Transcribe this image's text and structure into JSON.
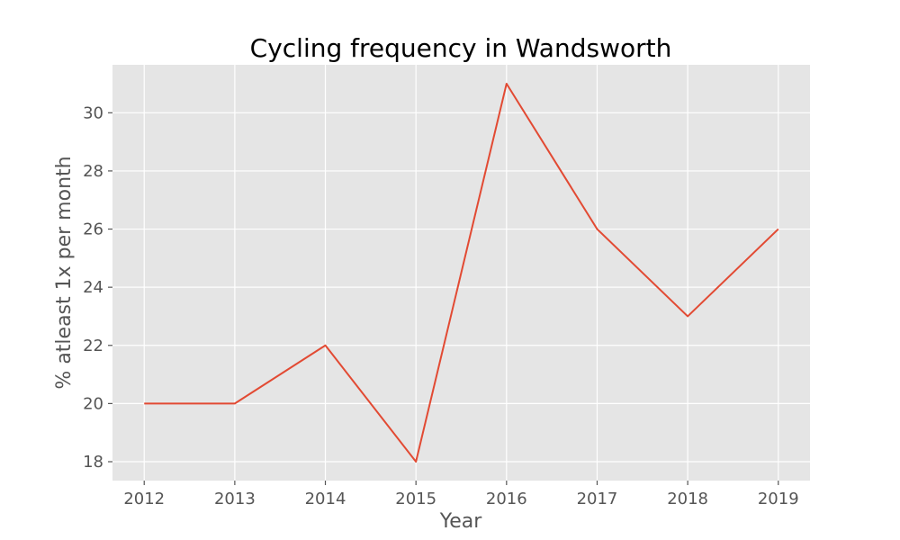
{
  "chart_data": {
    "type": "line",
    "title": "Cycling frequency in Wandsworth",
    "xlabel": "Year",
    "ylabel": "% atleast 1x per month",
    "x": [
      2012,
      2013,
      2014,
      2015,
      2016,
      2017,
      2018,
      2019
    ],
    "series": [
      {
        "values": [
          20,
          20,
          22,
          18,
          31,
          26,
          23,
          26
        ]
      }
    ],
    "xlim": [
      2011.65,
      2019.35
    ],
    "ylim": [
      17.35,
      31.65
    ],
    "yticks": [
      18,
      20,
      22,
      24,
      26,
      28,
      30
    ],
    "grid": true,
    "colors": {
      "line": "#E24A33",
      "background": "#E5E5E5",
      "grid": "#FFFFFF"
    }
  }
}
